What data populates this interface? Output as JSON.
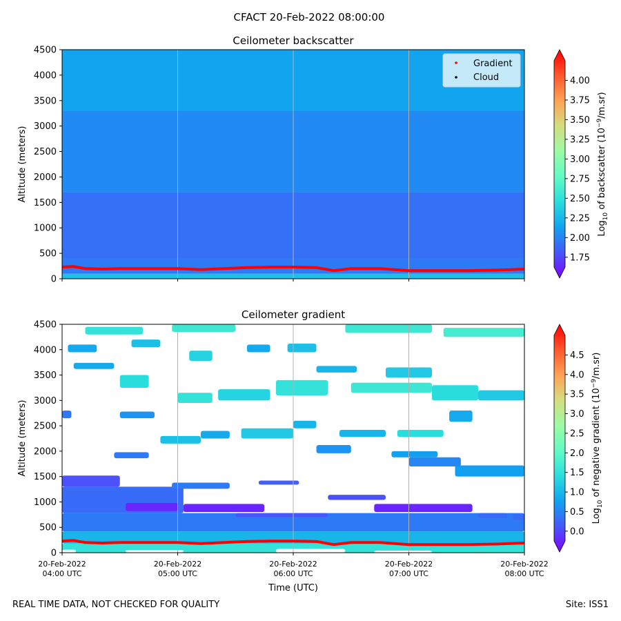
{
  "figure_title": "CFACT 20-Feb-2022 08:00:00",
  "footer": {
    "left": "REAL TIME DATA, NOT CHECKED FOR QUALITY",
    "right": "Site: ISS1"
  },
  "colormap": [
    "#8000ff",
    "#4856fb",
    "#10a2f0",
    "#2adddd",
    "#62fbc4",
    "#9cfba4",
    "#d4dd80",
    "#ffa256",
    "#ff562c",
    "#ff0000"
  ],
  "chart_data": [
    {
      "type": "heatmap",
      "title": "Ceilometer backscatter",
      "ylabel": "Altitude (meters)",
      "ylim": [
        0,
        4500
      ],
      "yticks": [
        0,
        500,
        1000,
        1500,
        2000,
        2500,
        3000,
        3500,
        4000,
        4500
      ],
      "x_range": [
        "20-Feb-2022 04:00 UTC",
        "20-Feb-2022 08:00 UTC"
      ],
      "xticks_hours": [
        4,
        5,
        6,
        7,
        8
      ],
      "grid": "vertical",
      "legend": {
        "placement": "top-right",
        "entries": [
          {
            "label": "Gradient",
            "color": "#ff0000"
          },
          {
            "label": "Cloud",
            "color": "#000000"
          }
        ]
      },
      "colorbar": {
        "label_prefix": "Log",
        "label_sub": "10",
        "label_mid": " of backscatter (10",
        "label_sup": "−9",
        "label_suffix": "/m.sr)",
        "range": [
          1.625,
          4.25
        ],
        "ticks": [
          "1.75",
          "2.00",
          "2.25",
          "2.50",
          "2.75",
          "3.00",
          "3.25",
          "3.50",
          "3.75",
          "4.00"
        ]
      },
      "layers": [
        {
          "altitude": [
            0,
            100
          ],
          "value": 2.35
        },
        {
          "altitude": [
            100,
            400
          ],
          "value": 2.05
        },
        {
          "altitude": [
            400,
            1700
          ],
          "value": 2.02
        },
        {
          "altitude": [
            1700,
            3300
          ],
          "value": 2.12
        },
        {
          "altitude": [
            3300,
            4500
          ],
          "value": 2.22
        }
      ],
      "gradient_line": {
        "color": "#ff0000",
        "hours": [
          4.0,
          4.1,
          4.2,
          4.35,
          4.5,
          4.75,
          5.0,
          5.2,
          5.4,
          5.6,
          5.8,
          6.0,
          6.2,
          6.35,
          6.5,
          6.75,
          7.0,
          7.25,
          7.5,
          7.75,
          8.0
        ],
        "altitudes": [
          230,
          240,
          200,
          190,
          200,
          200,
          200,
          180,
          200,
          220,
          230,
          230,
          220,
          160,
          200,
          200,
          160,
          160,
          160,
          170,
          190
        ]
      }
    },
    {
      "type": "heatmap",
      "title": "Ceilometer gradient",
      "xlabel": "Time (UTC)",
      "ylabel": "Altitude (meters)",
      "ylim": [
        0,
        4500
      ],
      "yticks": [
        0,
        500,
        1000,
        1500,
        2000,
        2500,
        3000,
        3500,
        4000,
        4500
      ],
      "x_range": [
        "20-Feb-2022 04:00 UTC",
        "20-Feb-2022 08:00 UTC"
      ],
      "xticks_hours": [
        4,
        5,
        6,
        7,
        8
      ],
      "xtick_labels": [
        {
          "date": "20-Feb-2022",
          "time": "04:00 UTC"
        },
        {
          "date": "20-Feb-2022",
          "time": "05:00 UTC"
        },
        {
          "date": "20-Feb-2022",
          "time": "06:00 UTC"
        },
        {
          "date": "20-Feb-2022",
          "time": "07:00 UTC"
        },
        {
          "date": "20-Feb-2022",
          "time": "08:00 UTC"
        }
      ],
      "grid": "vertical",
      "colorbar": {
        "label_prefix": "Log",
        "label_sub": "10",
        "label_mid": " of negative gradient (10",
        "label_sup": "−9",
        "label_suffix": "/m.sr)",
        "range": [
          -0.25,
          5.0
        ],
        "ticks": [
          "0.0",
          "0.5",
          "1.0",
          "1.5",
          "2.0",
          "2.5",
          "3.0",
          "3.5",
          "4.0",
          "4.5"
        ]
      },
      "bands": [
        {
          "hours": [
            4.0,
            8.0
          ],
          "altitude": [
            0,
            180
          ],
          "value": 1.6
        },
        {
          "hours": [
            4.0,
            8.0
          ],
          "altitude": [
            180,
            420
          ],
          "value": 1.1
        },
        {
          "hours": [
            4.0,
            8.0
          ],
          "altitude": [
            420,
            780
          ],
          "value": 0.6
        },
        {
          "hours": [
            4.0,
            5.05
          ],
          "altitude": [
            780,
            1300
          ],
          "value": 0.5
        },
        {
          "hours": [
            4.0,
            4.5
          ],
          "altitude": [
            1300,
            1520
          ],
          "value": 0.3
        },
        {
          "hours": [
            5.5,
            6.3
          ],
          "altitude": [
            700,
            780
          ],
          "value": 0.35
        },
        {
          "hours": [
            7.4,
            8.0
          ],
          "altitude": [
            1500,
            1720
          ],
          "value": 0.9
        },
        {
          "hours": [
            7.0,
            7.45
          ],
          "altitude": [
            1700,
            1880
          ],
          "value": 0.7
        },
        {
          "hours": [
            4.2,
            4.7
          ],
          "altitude": [
            4300,
            4450
          ],
          "value": 1.6
        },
        {
          "hours": [
            4.95,
            5.5
          ],
          "altitude": [
            4350,
            4500
          ],
          "value": 1.7
        },
        {
          "hours": [
            6.45,
            7.2
          ],
          "altitude": [
            4330,
            4500
          ],
          "value": 1.7
        },
        {
          "hours": [
            7.3,
            8.0
          ],
          "altitude": [
            4250,
            4430
          ],
          "value": 1.8
        },
        {
          "hours": [
            4.05,
            4.3
          ],
          "altitude": [
            3950,
            4100
          ],
          "value": 1.0
        },
        {
          "hours": [
            4.6,
            4.85
          ],
          "altitude": [
            4050,
            4200
          ],
          "value": 1.2
        },
        {
          "hours": [
            5.1,
            5.3
          ],
          "altitude": [
            3780,
            3980
          ],
          "value": 1.4
        },
        {
          "hours": [
            5.6,
            5.8
          ],
          "altitude": [
            3950,
            4100
          ],
          "value": 1.0
        },
        {
          "hours": [
            5.95,
            6.2
          ],
          "altitude": [
            3950,
            4120
          ],
          "value": 1.2
        },
        {
          "hours": [
            4.1,
            4.45
          ],
          "altitude": [
            3620,
            3740
          ],
          "value": 1.0
        },
        {
          "hours": [
            4.5,
            4.75
          ],
          "altitude": [
            3250,
            3500
          ],
          "value": 1.5
        },
        {
          "hours": [
            5.0,
            5.3
          ],
          "altitude": [
            2950,
            3150
          ],
          "value": 1.6
        },
        {
          "hours": [
            5.35,
            5.8
          ],
          "altitude": [
            3000,
            3220
          ],
          "value": 1.4
        },
        {
          "hours": [
            5.85,
            6.3
          ],
          "altitude": [
            3100,
            3400
          ],
          "value": 1.6
        },
        {
          "hours": [
            6.2,
            6.55
          ],
          "altitude": [
            3550,
            3680
          ],
          "value": 1.1
        },
        {
          "hours": [
            6.5,
            7.2
          ],
          "altitude": [
            3150,
            3350
          ],
          "value": 1.7
        },
        {
          "hours": [
            6.8,
            7.2
          ],
          "altitude": [
            3450,
            3650
          ],
          "value": 1.3
        },
        {
          "hours": [
            7.2,
            7.6
          ],
          "altitude": [
            3000,
            3300
          ],
          "value": 1.5
        },
        {
          "hours": [
            7.6,
            8.0
          ],
          "altitude": [
            3000,
            3200
          ],
          "value": 1.3
        },
        {
          "hours": [
            7.35,
            7.55
          ],
          "altitude": [
            2580,
            2800
          ],
          "value": 1.0
        },
        {
          "hours": [
            4.5,
            4.8
          ],
          "altitude": [
            2650,
            2780
          ],
          "value": 0.8
        },
        {
          "hours": [
            4.0,
            4.08
          ],
          "altitude": [
            2650,
            2800
          ],
          "value": 0.6
        },
        {
          "hours": [
            4.85,
            5.2
          ],
          "altitude": [
            2150,
            2300
          ],
          "value": 1.2
        },
        {
          "hours": [
            5.2,
            5.45
          ],
          "altitude": [
            2250,
            2400
          ],
          "value": 1.0
        },
        {
          "hours": [
            5.55,
            6.0
          ],
          "altitude": [
            2250,
            2450
          ],
          "value": 1.3
        },
        {
          "hours": [
            6.0,
            6.2
          ],
          "altitude": [
            2450,
            2600
          ],
          "value": 1.1
        },
        {
          "hours": [
            6.4,
            6.8
          ],
          "altitude": [
            2280,
            2420
          ],
          "value": 1.1
        },
        {
          "hours": [
            6.9,
            7.3
          ],
          "altitude": [
            2280,
            2420
          ],
          "value": 1.5
        },
        {
          "hours": [
            6.2,
            6.5
          ],
          "altitude": [
            1960,
            2120
          ],
          "value": 0.8
        },
        {
          "hours": [
            6.85,
            7.25
          ],
          "altitude": [
            1880,
            2000
          ],
          "value": 0.9
        },
        {
          "hours": [
            4.45,
            4.75
          ],
          "altitude": [
            1860,
            1980
          ],
          "value": 0.6
        },
        {
          "hours": [
            4.95,
            5.45
          ],
          "altitude": [
            1260,
            1380
          ],
          "value": 0.6
        },
        {
          "hours": [
            5.7,
            6.05
          ],
          "altitude": [
            1340,
            1420
          ],
          "value": 0.4
        },
        {
          "hours": [
            6.3,
            6.8
          ],
          "altitude": [
            1040,
            1140
          ],
          "value": 0.3
        },
        {
          "hours": [
            7.6,
            7.85
          ],
          "altitude": [
            680,
            780
          ],
          "value": 0.5
        },
        {
          "hours": [
            7.9,
            8.0
          ],
          "altitude": [
            640,
            760
          ],
          "value": 0.5
        },
        {
          "hours": [
            6.7,
            7.55
          ],
          "altitude": [
            800,
            960
          ],
          "value": 0.0
        },
        {
          "hours": [
            5.05,
            5.75
          ],
          "altitude": [
            800,
            960
          ],
          "value": 0.0
        },
        {
          "hours": [
            4.55,
            5.0
          ],
          "altitude": [
            820,
            980
          ],
          "value": 0.0
        }
      ],
      "gaps": [
        {
          "hours": [
            4.0,
            4.12
          ],
          "altitude": [
            0,
            60
          ]
        },
        {
          "hours": [
            4.55,
            5.05
          ],
          "altitude": [
            0,
            55
          ]
        },
        {
          "hours": [
            5.85,
            6.45
          ],
          "altitude": [
            0,
            75
          ]
        },
        {
          "hours": [
            6.7,
            7.2
          ],
          "altitude": [
            0,
            40
          ]
        }
      ],
      "gradient_line": {
        "color": "#ff0000",
        "hours": [
          4.0,
          4.1,
          4.2,
          4.35,
          4.5,
          4.75,
          5.0,
          5.2,
          5.4,
          5.6,
          5.8,
          6.0,
          6.2,
          6.35,
          6.5,
          6.75,
          7.0,
          7.25,
          7.5,
          7.75,
          8.0
        ],
        "altitudes": [
          230,
          240,
          200,
          190,
          200,
          200,
          200,
          180,
          200,
          220,
          230,
          230,
          220,
          160,
          200,
          200,
          160,
          160,
          160,
          170,
          190
        ]
      }
    }
  ]
}
